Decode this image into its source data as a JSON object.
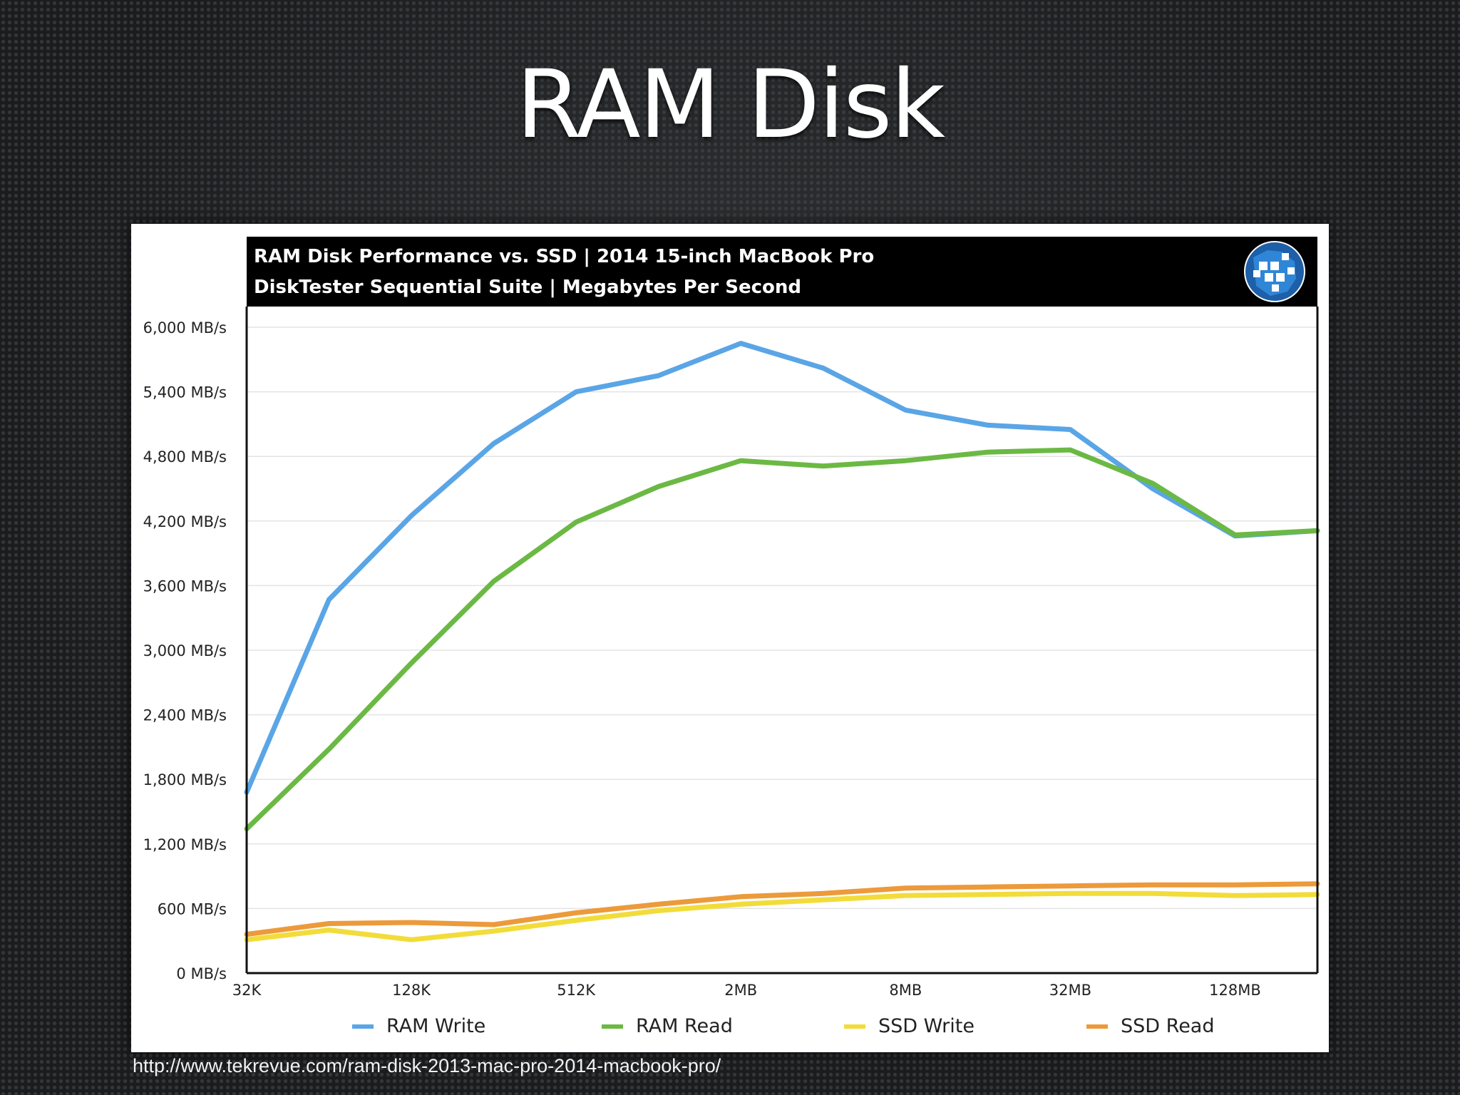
{
  "slide": {
    "title": "RAM Disk",
    "source_url": "http://www.tekrevue.com/ram-disk-2013-mac-pro-2014-macbook-pro/"
  },
  "chart_data": {
    "type": "line",
    "title": "RAM Disk Performance vs. SSD | 2014 15-inch MacBook Pro",
    "subtitle": "DiskTester Sequential Suite | Megabytes Per Second",
    "xlabel": "",
    "ylabel": "",
    "x_tick_labels": [
      "32K",
      "128K",
      "512K",
      "2MB",
      "8MB",
      "32MB",
      "128MB"
    ],
    "x_points": 14,
    "ylim": [
      0,
      6000
    ],
    "y_ticks": [
      0,
      600,
      1200,
      1800,
      2400,
      3000,
      3600,
      4200,
      4800,
      5400,
      6000
    ],
    "y_tick_labels": [
      "0 MB/s",
      "600 MB/s",
      "1,200 MB/s",
      "1,800 MB/s",
      "2,400 MB/s",
      "3,000 MB/s",
      "3,600 MB/s",
      "4,200 MB/s",
      "4,800 MB/s",
      "5,400 MB/s",
      "6,000 MB/s"
    ],
    "grid": true,
    "legend_position": "bottom",
    "series": [
      {
        "name": "RAM Write",
        "color": "#5aa5e6",
        "values": [
          1680,
          3470,
          4250,
          4920,
          5400,
          5550,
          5850,
          5620,
          5230,
          5090,
          5050,
          4500,
          4060,
          4110
        ]
      },
      {
        "name": "RAM Read",
        "color": "#6bb944",
        "values": [
          1340,
          2080,
          2880,
          3640,
          4190,
          4520,
          4760,
          4710,
          4760,
          4840,
          4860,
          4550,
          4070,
          4110
        ]
      },
      {
        "name": "SSD Write",
        "color": "#f2dc3a",
        "values": [
          310,
          400,
          310,
          390,
          490,
          580,
          640,
          680,
          720,
          730,
          740,
          740,
          720,
          730
        ]
      },
      {
        "name": "SSD Read",
        "color": "#ec9a3a",
        "values": [
          360,
          460,
          470,
          450,
          560,
          640,
          710,
          740,
          790,
          800,
          810,
          820,
          820,
          830
        ]
      }
    ]
  },
  "logo": {
    "name": "tekrevue-globe-logo"
  }
}
